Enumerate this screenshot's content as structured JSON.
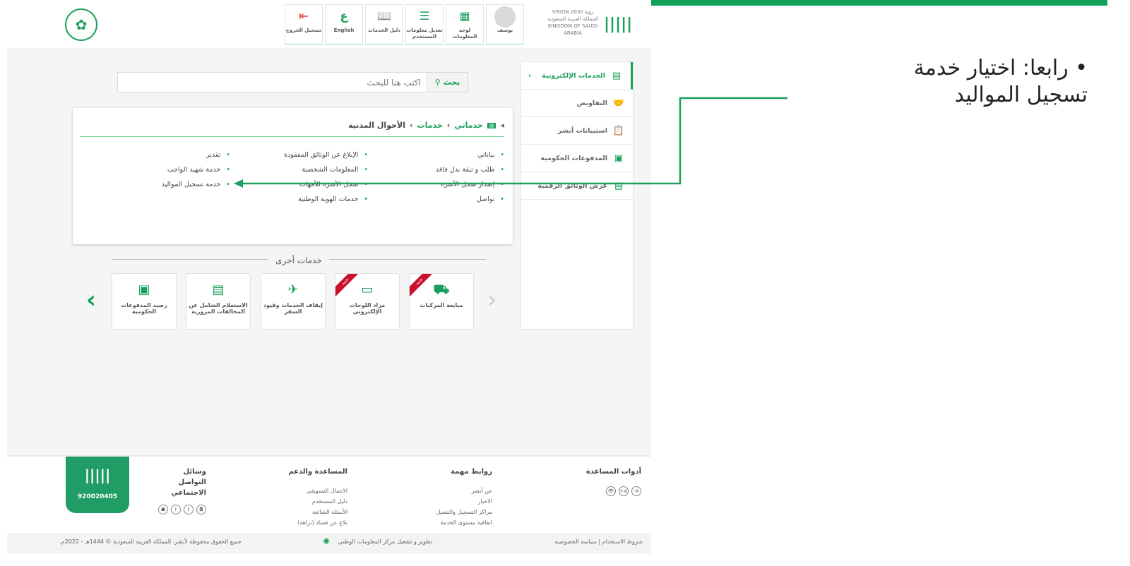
{
  "slide": {
    "bullet": "رابعا: اختيار خدمة تسجيل المواليد",
    "accent": "#13a159"
  },
  "header": {
    "logo": "أبشر",
    "vision": "VISION 2030 رؤية المملكة العربية السعودية KINGDOM OF SAUDI ARABIA",
    "buttons": [
      {
        "label": "يوسف",
        "icon": "avatar"
      },
      {
        "label": "لوحة المعلومات",
        "icon": "dashboard-icon"
      },
      {
        "label": "تعديل معلومات المستخدم",
        "icon": "sliders-icon"
      },
      {
        "label": "دليل الخدمات",
        "icon": "book-icon"
      },
      {
        "label": "English",
        "icon": "language-icon"
      },
      {
        "label": "تسجيل الخروج",
        "icon": "logout-icon"
      }
    ]
  },
  "search": {
    "button": "بحث",
    "placeholder": "اكتب هنا للبحث"
  },
  "breadcrumb": [
    "خدماتي",
    "خدمات",
    "الأحوال المدنية"
  ],
  "services": {
    "col1": [
      "بياناتي",
      "طلب و ثيقة بدل فاقد",
      "إصدار سجل الأسرة",
      "تواصل"
    ],
    "col2": [
      "الإبلاغ عن الوثائق المفقودة",
      "المعلومات الشخصية",
      "سجل الأسرة للأمهات",
      "خدمات الهوية الوطنية"
    ],
    "col3": [
      "تقدير",
      "خدمة شهيد الواجب",
      "خدمة تسجيل المواليد"
    ]
  },
  "other_services": {
    "title": "خدمات أخرى",
    "ribbon": "جديد",
    "cards": [
      {
        "label": "مبايعة المركبات",
        "new": true
      },
      {
        "label": "مزاد اللوحات الإلكتروني",
        "new": true
      },
      {
        "label": "إيقاف الخدمات وقيود السفر",
        "new": false
      },
      {
        "label": "الاستعلام الشامل عن المخالفات المرورية",
        "new": false
      },
      {
        "label": "رصيد المدفوعات الحكومية",
        "new": false
      }
    ]
  },
  "sidebar": [
    {
      "label": "الخدمات الإلكترونية",
      "active": true
    },
    {
      "label": "التفاويض"
    },
    {
      "label": "استبيانات أبشر"
    },
    {
      "label": "المدفوعات الحكومية"
    },
    {
      "label": "عرض الوثائق الرقمية"
    }
  ],
  "footer": {
    "tools_title": "أدوات المساعدة",
    "tools": [
      "A-",
      "A+",
      "👁"
    ],
    "links_title": "روابط مهمة",
    "links": [
      "عن أبشر",
      "الاخبار",
      "مراكز التسجيل والتفعيل",
      "اتفاقية مستوى الخدمة"
    ],
    "support_title": "المساعدة والدعم",
    "support": [
      "الاتصال التسويقي",
      "دليل المستخدم",
      "الأسئلة الشائعة",
      "بلاغ عن فساد (نزاهة)"
    ],
    "social_title": "وسائل التواصل الاجتماعي",
    "phone": "920020405",
    "terms": "شروط الاستخدام",
    "privacy": "سياسة الخصوصية",
    "dev": "تطوير و تشغيل مركز المعلومات الوطني",
    "copyright": "جميع الحقوق محفوظة لأبشر، المملكة العربية السعودية © 1444هـ - 2022م."
  }
}
